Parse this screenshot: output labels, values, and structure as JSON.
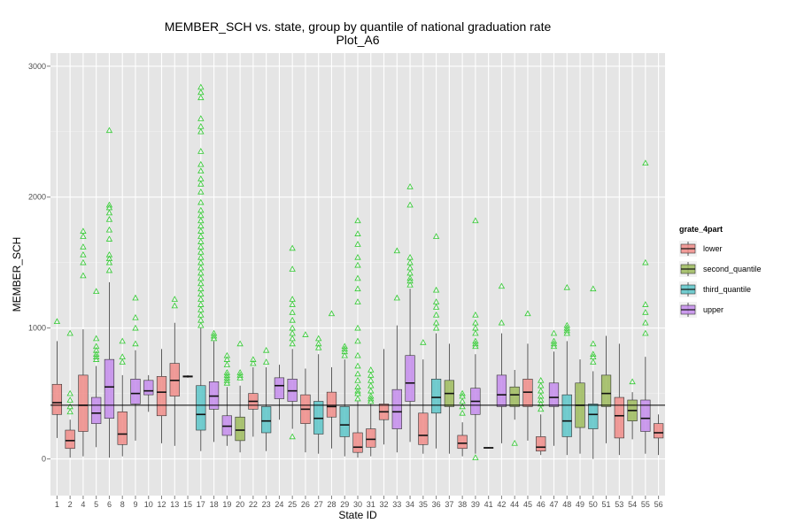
{
  "chart_data": {
    "type": "box",
    "title": "MEMBER_SCH vs. state, group by quantile of national graduation rate",
    "subtitle": "Plot_A6",
    "xlabel": "State ID",
    "ylabel": "MEMBER_SCH",
    "ylim": [
      -280,
      3100
    ],
    "y_ticks": [
      0,
      1000,
      2000,
      3000
    ],
    "reference_line_y": 410,
    "grid": true,
    "legend": {
      "title": "grate_4part",
      "position": "right",
      "entries": [
        {
          "name": "lower",
          "color": "#F08C88"
        },
        {
          "name": "second_quantile",
          "color": "#9DBB5D"
        },
        {
          "name": "third_quantile",
          "color": "#5CC6C9"
        },
        {
          "name": "upper",
          "color": "#C48CEC"
        }
      ]
    },
    "outlier_color": "#33CC33",
    "categories": [
      "1",
      "2",
      "4",
      "5",
      "6",
      "8",
      "9",
      "10",
      "12",
      "13",
      "15",
      "17",
      "18",
      "19",
      "20",
      "22",
      "23",
      "24",
      "25",
      "26",
      "27",
      "28",
      "29",
      "30",
      "31",
      "32",
      "33",
      "34",
      "35",
      "36",
      "37",
      "38",
      "39",
      "41",
      "42",
      "44",
      "45",
      "46",
      "47",
      "48",
      "49",
      "50",
      "51",
      "53",
      "54",
      "55",
      "56"
    ],
    "boxes": [
      {
        "state": "1",
        "group": "lower",
        "min": 160,
        "q1": 340,
        "median": 430,
        "q3": 570,
        "max": 900,
        "outliers": [
          1050
        ]
      },
      {
        "state": "2",
        "group": "lower",
        "min": 10,
        "q1": 80,
        "median": 140,
        "q3": 220,
        "max": 300,
        "outliers": [
          360,
          400,
          450,
          500,
          960
        ]
      },
      {
        "state": "4",
        "group": "lower",
        "min": 20,
        "q1": 210,
        "median": 410,
        "q3": 640,
        "max": 990,
        "outliers": [
          1400,
          1500,
          1560,
          1620,
          1700,
          1740
        ]
      },
      {
        "state": "5",
        "group": "upper",
        "min": 90,
        "q1": 270,
        "median": 350,
        "q3": 470,
        "max": 710,
        "outliers": [
          760,
          780,
          800,
          830,
          860,
          920,
          1280
        ]
      },
      {
        "state": "6",
        "group": "upper",
        "min": 10,
        "q1": 310,
        "median": 550,
        "q3": 760,
        "max": 1350,
        "outliers": [
          1440,
          1500,
          1530,
          1560,
          1680,
          1750,
          1830,
          1880,
          1920,
          1940,
          2510
        ]
      },
      {
        "state": "8",
        "group": "lower",
        "min": 20,
        "q1": 110,
        "median": 190,
        "q3": 360,
        "max": 640,
        "outliers": [
          740,
          780,
          900
        ]
      },
      {
        "state": "9",
        "group": "upper",
        "min": 140,
        "q1": 420,
        "median": 500,
        "q3": 610,
        "max": 830,
        "outliers": [
          880,
          1000,
          1080,
          1230
        ]
      },
      {
        "state": "10",
        "group": "upper",
        "min": 360,
        "q1": 490,
        "median": 520,
        "q3": 600,
        "max": 640,
        "outliers": []
      },
      {
        "state": "12",
        "group": "lower",
        "min": 120,
        "q1": 330,
        "median": 510,
        "q3": 630,
        "max": 840,
        "outliers": []
      },
      {
        "state": "13",
        "group": "lower",
        "min": 100,
        "q1": 480,
        "median": 600,
        "q3": 730,
        "max": 1040,
        "outliers": [
          1170,
          1220
        ]
      },
      {
        "state": "15",
        "group": "lower",
        "min": 620,
        "q1": 625,
        "median": 630,
        "q3": 635,
        "max": 640,
        "outliers": []
      },
      {
        "state": "17",
        "group": "third_quantile",
        "min": 60,
        "q1": 220,
        "median": 340,
        "q3": 560,
        "max": 1000,
        "outliers": [
          1020,
          1060,
          1100,
          1140,
          1180,
          1220,
          1260,
          1300,
          1340,
          1380,
          1420,
          1460,
          1500,
          1540,
          1580,
          1620,
          1660,
          1700,
          1740,
          1780,
          1820,
          1860,
          1900,
          1960,
          2040,
          2100,
          2140,
          2200,
          2250,
          2350,
          2500,
          2540,
          2600,
          2760,
          2800,
          2840
        ]
      },
      {
        "state": "18",
        "group": "upper",
        "min": 130,
        "q1": 380,
        "median": 480,
        "q3": 590,
        "max": 900,
        "outliers": [
          920,
          940,
          960
        ]
      },
      {
        "state": "19",
        "group": "upper",
        "min": 100,
        "q1": 180,
        "median": 250,
        "q3": 330,
        "max": 550,
        "outliers": [
          580,
          600,
          620,
          640,
          660,
          720,
          760,
          790
        ]
      },
      {
        "state": "20",
        "group": "second_quantile",
        "min": 50,
        "q1": 140,
        "median": 220,
        "q3": 320,
        "max": 560,
        "outliers": [
          620,
          640,
          660,
          880
        ]
      },
      {
        "state": "22",
        "group": "lower",
        "min": 170,
        "q1": 380,
        "median": 440,
        "q3": 500,
        "max": 700,
        "outliers": [
          730,
          760
        ]
      },
      {
        "state": "23",
        "group": "third_quantile",
        "min": 60,
        "q1": 200,
        "median": 290,
        "q3": 400,
        "max": 700,
        "outliers": [
          740,
          830
        ]
      },
      {
        "state": "24",
        "group": "upper",
        "min": 300,
        "q1": 460,
        "median": 560,
        "q3": 620,
        "max": 720,
        "outliers": []
      },
      {
        "state": "25",
        "group": "upper",
        "min": 230,
        "q1": 440,
        "median": 520,
        "q3": 610,
        "max": 840,
        "outliers": [
          170,
          880,
          920,
          960,
          1000,
          1060,
          1120,
          1180,
          1220,
          1450,
          1610
        ]
      },
      {
        "state": "26",
        "group": "lower",
        "min": 50,
        "q1": 270,
        "median": 380,
        "q3": 490,
        "max": 690,
        "outliers": [
          950
        ]
      },
      {
        "state": "27",
        "group": "third_quantile",
        "min": 40,
        "q1": 190,
        "median": 310,
        "q3": 440,
        "max": 800,
        "outliers": [
          850,
          880,
          920
        ]
      },
      {
        "state": "28",
        "group": "lower",
        "min": 80,
        "q1": 320,
        "median": 400,
        "q3": 510,
        "max": 700,
        "outliers": [
          1110
        ]
      },
      {
        "state": "29",
        "group": "third_quantile",
        "min": 20,
        "q1": 170,
        "median": 260,
        "q3": 400,
        "max": 760,
        "outliers": [
          790,
          820,
          840,
          860
        ]
      },
      {
        "state": "30",
        "group": "lower",
        "min": 10,
        "q1": 50,
        "median": 90,
        "q3": 200,
        "max": 440,
        "outliers": [
          460,
          500,
          520,
          550,
          600,
          650,
          710,
          790,
          900,
          1000,
          1200,
          1300,
          1380,
          1480,
          1540,
          1640,
          1720,
          1820
        ]
      },
      {
        "state": "31",
        "group": "lower",
        "min": 20,
        "q1": 90,
        "median": 150,
        "q3": 230,
        "max": 420,
        "outliers": [
          440,
          460,
          480,
          520,
          560,
          600,
          640,
          680
        ]
      },
      {
        "state": "32",
        "group": "lower",
        "min": 110,
        "q1": 300,
        "median": 360,
        "q3": 420,
        "max": 840,
        "outliers": []
      },
      {
        "state": "33",
        "group": "upper",
        "min": 50,
        "q1": 230,
        "median": 360,
        "q3": 530,
        "max": 1020,
        "outliers": [
          1230,
          1590
        ]
      },
      {
        "state": "34",
        "group": "upper",
        "min": 130,
        "q1": 440,
        "median": 580,
        "q3": 790,
        "max": 1300,
        "outliers": [
          1330,
          1360,
          1380,
          1420,
          1460,
          1500,
          1540,
          1940,
          2080
        ]
      },
      {
        "state": "35",
        "group": "lower",
        "min": 40,
        "q1": 110,
        "median": 180,
        "q3": 350,
        "max": 760,
        "outliers": [
          890
        ]
      },
      {
        "state": "36",
        "group": "third_quantile",
        "min": 80,
        "q1": 350,
        "median": 470,
        "q3": 610,
        "max": 960,
        "outliers": [
          1000,
          1040,
          1100,
          1160,
          1200,
          1290,
          1700
        ]
      },
      {
        "state": "37",
        "group": "second_quantile",
        "min": 40,
        "q1": 400,
        "median": 500,
        "q3": 600,
        "max": 880,
        "outliers": []
      },
      {
        "state": "38",
        "group": "lower",
        "min": 20,
        "q1": 80,
        "median": 120,
        "q3": 180,
        "max": 280,
        "outliers": [
          350,
          400,
          440,
          480,
          500
        ]
      },
      {
        "state": "39",
        "group": "upper",
        "min": 40,
        "q1": 340,
        "median": 440,
        "q3": 540,
        "max": 800,
        "outliers": [
          10,
          860,
          880,
          900,
          960,
          1000,
          1040,
          1100,
          1820
        ]
      },
      {
        "state": "41",
        "group": "lower",
        "min": 80,
        "q1": 82,
        "median": 85,
        "q3": 88,
        "max": 90,
        "outliers": []
      },
      {
        "state": "42",
        "group": "upper",
        "min": 120,
        "q1": 400,
        "median": 490,
        "q3": 640,
        "max": 960,
        "outliers": [
          1040,
          1320
        ]
      },
      {
        "state": "44",
        "group": "second_quantile",
        "min": 300,
        "q1": 400,
        "median": 490,
        "q3": 550,
        "max": 680,
        "outliers": [
          120
        ]
      },
      {
        "state": "45",
        "group": "lower",
        "min": 140,
        "q1": 400,
        "median": 510,
        "q3": 610,
        "max": 880,
        "outliers": [
          1110
        ]
      },
      {
        "state": "46",
        "group": "lower",
        "min": 30,
        "q1": 60,
        "median": 90,
        "q3": 170,
        "max": 340,
        "outliers": [
          380,
          420,
          450,
          480,
          520,
          560,
          600
        ]
      },
      {
        "state": "47",
        "group": "upper",
        "min": 100,
        "q1": 400,
        "median": 470,
        "q3": 580,
        "max": 820,
        "outliers": [
          860,
          880,
          900,
          960
        ]
      },
      {
        "state": "48",
        "group": "third_quantile",
        "min": 30,
        "q1": 170,
        "median": 290,
        "q3": 490,
        "max": 900,
        "outliers": [
          960,
          980,
          1000,
          1020,
          1310
        ]
      },
      {
        "state": "49",
        "group": "second_quantile",
        "min": 40,
        "q1": 240,
        "median": 410,
        "q3": 580,
        "max": 760,
        "outliers": []
      },
      {
        "state": "50",
        "group": "third_quantile",
        "min": 0,
        "q1": 230,
        "median": 340,
        "q3": 420,
        "max": 670,
        "outliers": [
          740,
          780,
          800,
          880,
          1300
        ]
      },
      {
        "state": "51",
        "group": "second_quantile",
        "min": 120,
        "q1": 400,
        "median": 500,
        "q3": 640,
        "max": 940,
        "outliers": []
      },
      {
        "state": "53",
        "group": "lower",
        "min": 30,
        "q1": 160,
        "median": 330,
        "q3": 470,
        "max": 880,
        "outliers": []
      },
      {
        "state": "54",
        "group": "second_quantile",
        "min": 150,
        "q1": 290,
        "median": 370,
        "q3": 450,
        "max": 510,
        "outliers": [
          590
        ]
      },
      {
        "state": "55",
        "group": "upper",
        "min": 40,
        "q1": 210,
        "median": 310,
        "q3": 450,
        "max": 780,
        "outliers": [
          960,
          1040,
          1120,
          1180,
          1500,
          2260
        ]
      },
      {
        "state": "56",
        "group": "lower",
        "min": 30,
        "q1": 160,
        "median": 200,
        "q3": 270,
        "max": 340,
        "outliers": []
      }
    ]
  }
}
